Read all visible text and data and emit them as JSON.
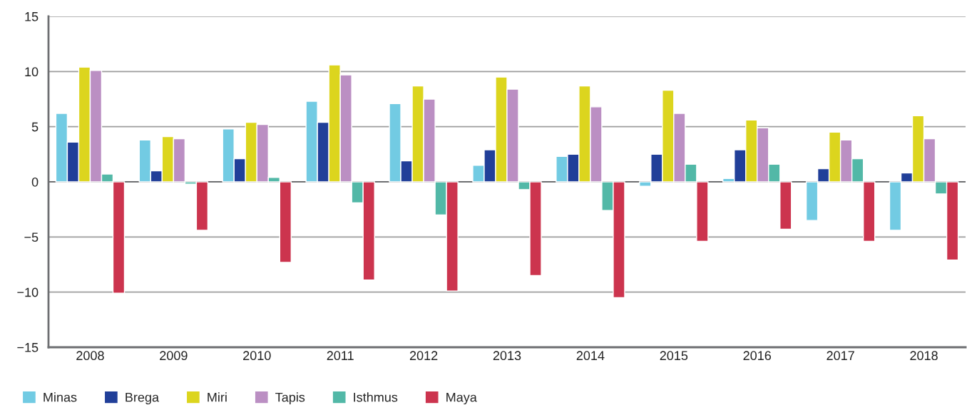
{
  "chart_data": {
    "type": "bar",
    "categories": [
      "2008",
      "2009",
      "2010",
      "2011",
      "2012",
      "2013",
      "2014",
      "2015",
      "2016",
      "2017",
      "2018"
    ],
    "series": [
      {
        "name": "Minas",
        "color": "#72cbe3",
        "values": [
          6.2,
          3.8,
          4.8,
          7.3,
          7.1,
          1.5,
          2.3,
          -0.4,
          0.3,
          -3.5,
          -4.4
        ]
      },
      {
        "name": "Brega",
        "color": "#213f99",
        "values": [
          3.6,
          1.0,
          2.1,
          5.4,
          1.9,
          2.9,
          2.5,
          2.5,
          2.9,
          1.2,
          0.8
        ]
      },
      {
        "name": "Miri",
        "color": "#dcd51e",
        "values": [
          10.4,
          4.1,
          5.4,
          10.6,
          8.7,
          9.5,
          8.7,
          8.3,
          5.6,
          4.5,
          6.0
        ]
      },
      {
        "name": "Tapis",
        "color": "#bb8fc3",
        "values": [
          10.1,
          3.9,
          5.2,
          9.7,
          7.5,
          8.4,
          6.8,
          6.2,
          4.9,
          3.8,
          3.9
        ]
      },
      {
        "name": "Isthmus",
        "color": "#52b8a7",
        "values": [
          0.7,
          -0.2,
          0.4,
          -1.9,
          -3.0,
          -0.7,
          -2.6,
          1.6,
          1.6,
          2.1,
          -1.1
        ]
      },
      {
        "name": "Maya",
        "color": "#cc344e",
        "values": [
          -10.1,
          -4.4,
          -7.3,
          -8.9,
          -9.9,
          -8.5,
          -10.5,
          -5.4,
          -4.3,
          -5.4,
          -7.1
        ]
      }
    ],
    "ylim": [
      -15,
      15
    ],
    "yticks": [
      -15,
      -10,
      -5,
      0,
      5,
      10,
      15
    ],
    "ref_lines": [
      {
        "axis": "y",
        "value": 0,
        "color": "#6d6e71"
      }
    ],
    "grid": "y",
    "legend": "bottom left"
  }
}
